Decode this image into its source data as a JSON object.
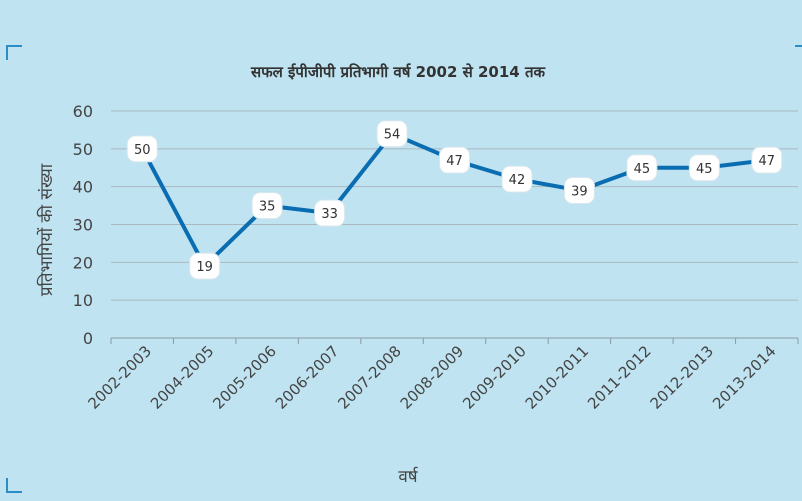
{
  "chart_data": {
    "type": "line",
    "title": "सफल ईपीजीपी प्रतिभागी वर्ष 2002 से 2014 तक",
    "xlabel": "वर्ष",
    "ylabel": "प्रतिभागियों की संख्या",
    "ylim": [
      0,
      60
    ],
    "yticks": [
      "0",
      "10",
      "20",
      "30",
      "40",
      "50",
      "60"
    ],
    "grid": true,
    "categories": [
      "2002-2003",
      "2004-2005",
      "2005-2006",
      "2006-2007",
      "2007-2008",
      "2008-2009",
      "2009-2010",
      "2010-2011",
      "2011-2012",
      "2012-2013",
      "2013-2014"
    ],
    "series": [
      {
        "values": [
          50,
          19,
          35,
          33,
          54,
          47,
          42,
          39,
          45,
          45,
          47
        ],
        "color": "#0a6db1",
        "labels": [
          "50",
          "19",
          "35",
          "33",
          "54",
          "47",
          "42",
          "39",
          "45",
          "45",
          "47"
        ]
      }
    ]
  }
}
